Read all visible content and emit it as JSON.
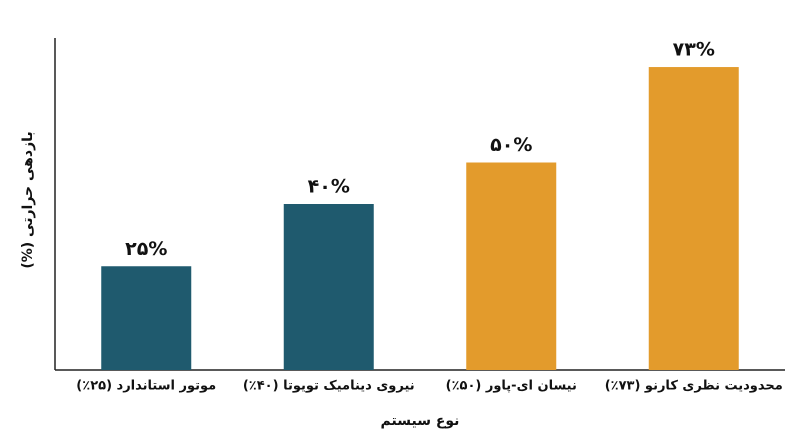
{
  "chart_data": {
    "type": "bar",
    "categories": [
      "موتور استاندارد (۲۵٪)",
      "نیروی دینامیک تویوتا (۴۰٪)",
      "نیسان ای-پاور (۵۰٪)",
      "محدودیت نظری کارنو (۷۳٪)"
    ],
    "values": [
      25,
      40,
      50,
      73
    ],
    "value_labels": [
      "۲۵%",
      "۴۰%",
      "۵۰%",
      "۷۳%"
    ],
    "colors": [
      "#1f5a6e",
      "#1f5a6e",
      "#e39b2c",
      "#e39b2c"
    ],
    "x_label": "نوع سیستم",
    "y_label": "بازدهی حرارتی (%)",
    "ylim": [
      0,
      80
    ]
  }
}
